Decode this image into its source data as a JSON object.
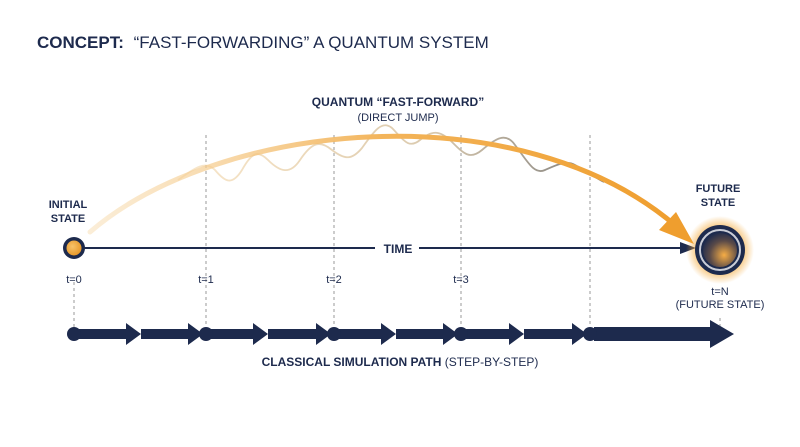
{
  "title": {
    "prefix": "CONCEPT:",
    "text": "“FAST-FORWARDING” A QUANTUM SYSTEM"
  },
  "quantum_arc": {
    "label": "QUANTUM “FAST-FORWARD”",
    "sublabel": "(DIRECT JUMP)"
  },
  "initial_state": {
    "line1": "INITIAL",
    "line2": "STATE"
  },
  "future_state": {
    "line1": "FUTURE",
    "line2": "STATE"
  },
  "time_axis": {
    "label": "TIME",
    "ticks": [
      "t=0",
      "t=1",
      "t=2",
      "t=3",
      "t=N"
    ],
    "end_sublabel": "(FUTURE STATE)"
  },
  "classical_path": {
    "label_bold": "CLASSICAL SIMULATION PATH",
    "label_rest": " (STEP-BY-STEP)"
  },
  "colors": {
    "navy": "#1d2a4d",
    "orange": "#f0a63a",
    "gray": "#8a8a8a"
  }
}
